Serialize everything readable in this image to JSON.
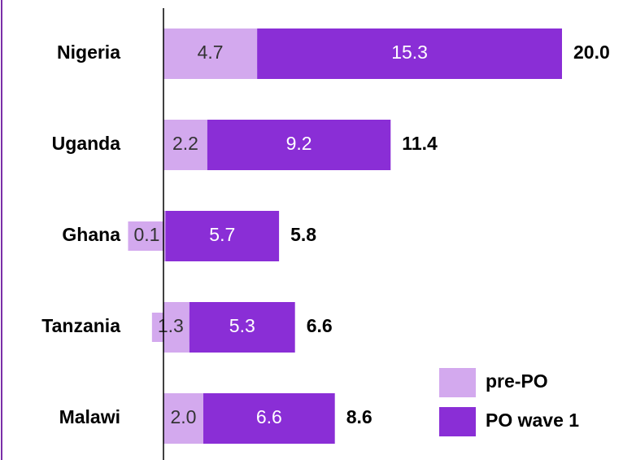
{
  "chart_data": {
    "type": "stacked_barh",
    "categories": [
      "Nigeria",
      "Uganda",
      "Ghana",
      "Tanzania",
      "Malawi"
    ],
    "series": [
      {
        "name": "pre-PO",
        "color": "#d3a9ee",
        "values": [
          4.7,
          2.2,
          0.1,
          1.3,
          2.0
        ],
        "value_labels": [
          "4.7",
          "2.2",
          "0.1",
          "1.3",
          "2.0"
        ]
      },
      {
        "name": "PO wave 1",
        "color": "#8a2ed6",
        "values": [
          15.3,
          9.2,
          5.7,
          5.3,
          6.6
        ],
        "value_labels": [
          "15.3",
          "9.2",
          "5.7",
          "5.3",
          "6.6"
        ]
      }
    ],
    "totals": {
      "values": [
        20,
        11.4,
        5.8,
        6.6,
        8.6
      ],
      "value_labels": [
        "20.0",
        "11.4",
        "5.8",
        "6.6",
        "8.6"
      ]
    },
    "xlim": [
      0,
      22
    ],
    "legend": "lower right"
  }
}
